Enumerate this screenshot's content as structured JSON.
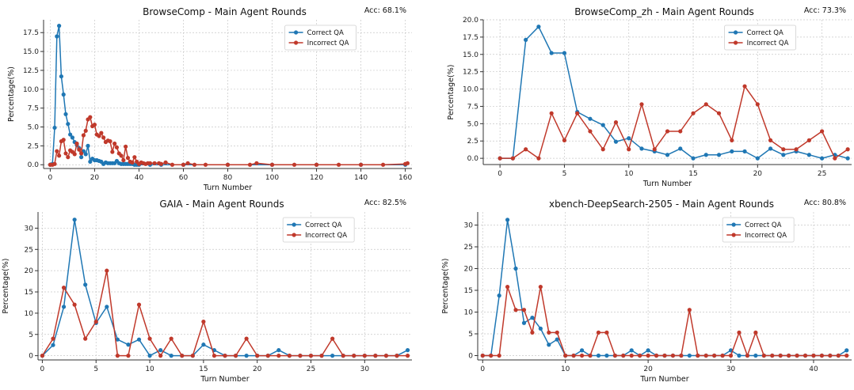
{
  "colors": {
    "correct": "#1f77b4",
    "incorrect": "#c0392b",
    "grid": "#c8c8c8",
    "axis": "#333333"
  },
  "chart_data": [
    {
      "type": "line",
      "title": "BrowseComp - Main Agent Rounds",
      "acc": "Acc: 68.1%",
      "xlabel": "Turn Number",
      "ylabel": "Percentage(%)",
      "xlim": [
        -3,
        163
      ],
      "ylim": [
        -0.5,
        19.2
      ],
      "xticks": [
        0,
        20,
        40,
        60,
        80,
        100,
        120,
        140,
        160
      ],
      "yticks": [
        0.0,
        2.5,
        5.0,
        7.5,
        10.0,
        12.5,
        15.0,
        17.5
      ],
      "ytick_labels": [
        "0.0",
        "2.5",
        "5.0",
        "7.5",
        "10.0",
        "12.5",
        "15.0",
        "17.5"
      ],
      "grid": true,
      "legend": "top-center-right",
      "series": [
        {
          "name": "Correct QA",
          "color": "correct",
          "x": [
            0,
            1,
            2,
            3,
            4,
            5,
            6,
            7,
            8,
            9,
            10,
            11,
            12,
            13,
            14,
            15,
            16,
            17,
            18,
            19,
            20,
            21,
            22,
            23,
            24,
            25,
            26,
            27,
            28,
            29,
            30,
            31,
            32,
            33,
            34,
            35,
            36,
            37,
            38,
            39,
            40,
            45,
            50,
            60,
            80,
            100,
            120,
            140,
            160
          ],
          "y": [
            0,
            0.1,
            4.9,
            17.0,
            18.4,
            11.7,
            9.3,
            6.7,
            5.4,
            4.0,
            3.6,
            3.0,
            2.6,
            2.2,
            1.0,
            1.8,
            1.4,
            2.5,
            0.4,
            0.8,
            0.6,
            0.6,
            0.5,
            0.4,
            0.1,
            0.3,
            0.2,
            0.2,
            0.2,
            0.2,
            0.5,
            0.2,
            0.1,
            0.1,
            0.1,
            0.1,
            0.1,
            0.1,
            0,
            0,
            0,
            0,
            0,
            0,
            0,
            0,
            0,
            0,
            0
          ]
        },
        {
          "name": "Incorrect QA",
          "color": "incorrect",
          "x": [
            0,
            1,
            2,
            3,
            4,
            5,
            6,
            7,
            8,
            9,
            10,
            11,
            12,
            13,
            14,
            15,
            16,
            17,
            18,
            19,
            20,
            21,
            22,
            23,
            24,
            25,
            26,
            27,
            28,
            29,
            30,
            31,
            32,
            33,
            34,
            35,
            36,
            37,
            38,
            39,
            40,
            41,
            42,
            43,
            44,
            45,
            47,
            49,
            50,
            52,
            55,
            60,
            62,
            65,
            70,
            80,
            90,
            93,
            100,
            110,
            120,
            130,
            140,
            150,
            160,
            161
          ],
          "y": [
            0,
            0,
            0.1,
            1.8,
            1.2,
            3.1,
            3.3,
            1.5,
            1.0,
            1.9,
            1.7,
            1.4,
            2.8,
            2.0,
            1.5,
            3.9,
            4.5,
            6.0,
            6.3,
            5.1,
            5.3,
            4.0,
            3.8,
            4.2,
            3.6,
            3.0,
            3.2,
            3.1,
            1.7,
            2.8,
            2.3,
            1.5,
            1.2,
            0.6,
            2.4,
            0.9,
            0.4,
            0.3,
            1.0,
            0.4,
            0.1,
            0.3,
            0.2,
            0.1,
            0.2,
            0.2,
            0.2,
            0.2,
            0.1,
            0.3,
            0,
            0,
            0.2,
            0,
            0,
            0,
            0,
            0.2,
            0,
            0,
            0,
            0,
            0,
            0,
            0.1,
            0.2
          ]
        }
      ]
    },
    {
      "type": "line",
      "title": "BrowseComp_zh - Main Agent Rounds",
      "acc": "Acc: 73.3%",
      "xlabel": "Turn Number",
      "ylabel": "Percentage(%)",
      "xlim": [
        -1.3,
        27.3
      ],
      "ylim": [
        -0.9,
        20.0
      ],
      "xticks": [
        0,
        5,
        10,
        15,
        20,
        25
      ],
      "yticks": [
        0.0,
        2.5,
        5.0,
        7.5,
        10.0,
        12.5,
        15.0,
        17.5,
        20.0
      ],
      "ytick_labels": [
        "0.0",
        "2.5",
        "5.0",
        "7.5",
        "10.0",
        "12.5",
        "15.0",
        "17.5",
        "20.0"
      ],
      "grid": true,
      "legend": "top-center-right",
      "series": [
        {
          "name": "Correct QA",
          "color": "correct",
          "x": [
            0,
            1,
            2,
            3,
            4,
            5,
            6,
            7,
            8,
            9,
            10,
            11,
            12,
            13,
            14,
            15,
            16,
            17,
            18,
            19,
            20,
            21,
            22,
            23,
            24,
            25,
            26,
            27
          ],
          "y": [
            0,
            0,
            17.1,
            19.0,
            15.2,
            15.2,
            6.7,
            5.7,
            4.8,
            2.4,
            2.9,
            1.4,
            1.0,
            0.5,
            1.4,
            0,
            0.5,
            0.5,
            1.0,
            1.0,
            0,
            1.4,
            0.5,
            1.0,
            0.5,
            0,
            0.5,
            0
          ]
        },
        {
          "name": "Incorrect QA",
          "color": "incorrect",
          "x": [
            0,
            1,
            2,
            3,
            4,
            5,
            6,
            7,
            8,
            9,
            10,
            11,
            12,
            13,
            14,
            15,
            16,
            17,
            18,
            19,
            20,
            21,
            22,
            23,
            24,
            25,
            26,
            27
          ],
          "y": [
            0,
            0,
            1.3,
            0,
            6.5,
            2.6,
            6.5,
            3.9,
            1.3,
            5.2,
            1.3,
            7.8,
            1.3,
            3.9,
            3.9,
            6.5,
            7.8,
            6.5,
            2.6,
            10.4,
            7.8,
            2.6,
            1.3,
            1.3,
            2.6,
            3.9,
            0,
            1.3
          ]
        }
      ]
    },
    {
      "type": "line",
      "title": "GAIA - Main Agent Rounds",
      "acc": "Acc: 82.5%",
      "xlabel": "Turn Number",
      "ylabel": "Percentage(%)",
      "xlim": [
        -0.4,
        34.4
      ],
      "ylim": [
        -1.0,
        33.8
      ],
      "xticks": [
        0,
        5,
        10,
        15,
        20,
        25,
        30
      ],
      "yticks": [
        0,
        5,
        10,
        15,
        20,
        25,
        30
      ],
      "ytick_labels": [
        "0",
        "5",
        "10",
        "15",
        "20",
        "25",
        "30"
      ],
      "grid": true,
      "legend": "top-center-right",
      "series": [
        {
          "name": "Correct QA",
          "color": "correct",
          "x": [
            0,
            1,
            2,
            3,
            4,
            5,
            6,
            7,
            8,
            9,
            10,
            11,
            12,
            13,
            14,
            15,
            16,
            17,
            18,
            19,
            20,
            21,
            22,
            23,
            24,
            25,
            26,
            27,
            28,
            29,
            30,
            31,
            32,
            33,
            34
          ],
          "y": [
            0,
            2.5,
            11.5,
            32.0,
            16.7,
            7.7,
            11.5,
            3.8,
            2.6,
            3.8,
            0,
            1.3,
            0,
            0,
            0,
            2.6,
            1.3,
            0,
            0,
            0,
            0,
            0,
            1.3,
            0,
            0,
            0,
            0,
            0,
            0,
            0,
            0,
            0,
            0,
            0,
            1.3
          ]
        },
        {
          "name": "Incorrect QA",
          "color": "incorrect",
          "x": [
            0,
            1,
            2,
            3,
            4,
            5,
            6,
            7,
            8,
            9,
            10,
            11,
            12,
            13,
            14,
            15,
            16,
            17,
            18,
            19,
            20,
            21,
            22,
            23,
            24,
            25,
            26,
            27,
            28,
            29,
            30,
            31,
            32,
            33,
            34
          ],
          "y": [
            0,
            4.0,
            16.0,
            12.0,
            4.0,
            8.0,
            20.0,
            0,
            0,
            12.0,
            4.0,
            0,
            4.0,
            0,
            0,
            8.0,
            0,
            0,
            0,
            4.0,
            0,
            0,
            0,
            0,
            0,
            0,
            0,
            4.0,
            0,
            0,
            0,
            0,
            0,
            0,
            0
          ]
        }
      ]
    },
    {
      "type": "line",
      "title": "xbench-DeepSearch-2505 - Main Agent Rounds",
      "acc": "Acc: 80.8%",
      "xlabel": "Turn Number",
      "ylabel": "Percentage(%)",
      "xlim": [
        -0.6,
        44.6
      ],
      "ylim": [
        -1.0,
        33.0
      ],
      "xticks": [
        0,
        10,
        20,
        30,
        40
      ],
      "yticks": [
        0,
        5,
        10,
        15,
        20,
        25,
        30
      ],
      "ytick_labels": [
        "0",
        "5",
        "10",
        "15",
        "20",
        "25",
        "30"
      ],
      "grid": true,
      "legend": "top-center-right",
      "series": [
        {
          "name": "Correct QA",
          "color": "correct",
          "x": [
            0,
            1,
            2,
            3,
            4,
            5,
            6,
            7,
            8,
            9,
            10,
            11,
            12,
            13,
            14,
            15,
            16,
            17,
            18,
            19,
            20,
            21,
            22,
            23,
            24,
            25,
            26,
            27,
            28,
            29,
            30,
            31,
            32,
            33,
            34,
            35,
            36,
            37,
            38,
            39,
            40,
            41,
            42,
            43,
            44
          ],
          "y": [
            0,
            0,
            13.8,
            31.2,
            20.0,
            7.5,
            8.7,
            6.2,
            2.5,
            3.7,
            0,
            0,
            1.2,
            0,
            0,
            0,
            0,
            0,
            1.2,
            0,
            1.2,
            0,
            0,
            0,
            0,
            0,
            0,
            0,
            0,
            0,
            1.2,
            0,
            0,
            0,
            0,
            0,
            0,
            0,
            0,
            0,
            0,
            0,
            0,
            0,
            1.2
          ]
        },
        {
          "name": "Incorrect QA",
          "color": "incorrect",
          "x": [
            0,
            1,
            2,
            3,
            4,
            5,
            6,
            7,
            8,
            9,
            10,
            11,
            12,
            13,
            14,
            15,
            16,
            17,
            18,
            19,
            20,
            21,
            22,
            23,
            24,
            25,
            26,
            27,
            28,
            29,
            30,
            31,
            32,
            33,
            34,
            35,
            36,
            37,
            38,
            39,
            40,
            41,
            42,
            43,
            44
          ],
          "y": [
            0,
            0,
            0,
            15.8,
            10.5,
            10.5,
            5.3,
            15.8,
            5.3,
            5.3,
            0,
            0,
            0,
            0,
            5.3,
            5.3,
            0,
            0,
            0,
            0,
            0,
            0,
            0,
            0,
            0,
            10.5,
            0,
            0,
            0,
            0,
            0,
            5.3,
            0,
            5.3,
            0,
            0,
            0,
            0,
            0,
            0,
            0,
            0,
            0,
            0,
            0
          ]
        }
      ]
    }
  ]
}
